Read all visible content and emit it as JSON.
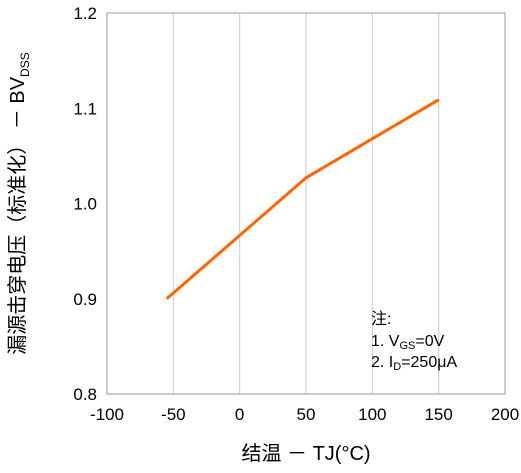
{
  "chart_data": {
    "type": "line",
    "title": "",
    "xlabel": "结温 － TJ(°C)",
    "ylabel": "漏源击穿电压（标准化） － BVDSS",
    "ylabel_main": "漏源击穿电压（标准化） － BV",
    "ylabel_sub": "DSS",
    "xlim": [
      -100,
      200
    ],
    "ylim": [
      0.8,
      1.2
    ],
    "x_ticks": [
      "-100",
      "-50",
      "0",
      "50",
      "100",
      "150",
      "200"
    ],
    "y_ticks": [
      "0.8",
      "0.9",
      "1.0",
      "1.1",
      "1.2"
    ],
    "grid": "vertical",
    "series": [
      {
        "x": [
          -55,
          50,
          150
        ],
        "y": [
          0.9,
          1.027,
          1.109
        ],
        "color": "#FF6600"
      }
    ],
    "annotation": {
      "title": "注:",
      "line1": {
        "prefix": "1. V",
        "sub": "GS",
        "suffix": "=0V"
      },
      "line2": {
        "prefix": "2. I",
        "sub": "D",
        "suffix": "=250μA"
      }
    }
  },
  "colors": {
    "line": "#FF6600",
    "grid": "#cccccc",
    "axis": "#999999"
  }
}
